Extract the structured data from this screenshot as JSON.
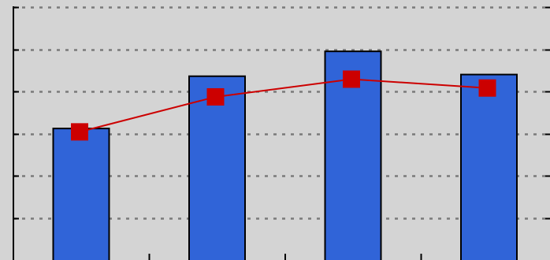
{
  "chart_data": {
    "type": "bar",
    "categories": [
      "",
      "",
      "",
      ""
    ],
    "ylim": [
      0,
      6
    ],
    "grid": true,
    "series": [
      {
        "kind": "bar",
        "color": "#3064d8",
        "values": [
          3.12,
          4.36,
          4.95,
          4.4
        ]
      },
      {
        "kind": "line",
        "color": "#cc0000",
        "marker": "square",
        "values": [
          3.04,
          3.87,
          4.29,
          4.08
        ]
      }
    ],
    "title": "",
    "xlabel": "",
    "ylabel": ""
  },
  "colors": {
    "background": "#d4d4d4",
    "gridline": "#7a7a7a",
    "axis": "#000000"
  }
}
